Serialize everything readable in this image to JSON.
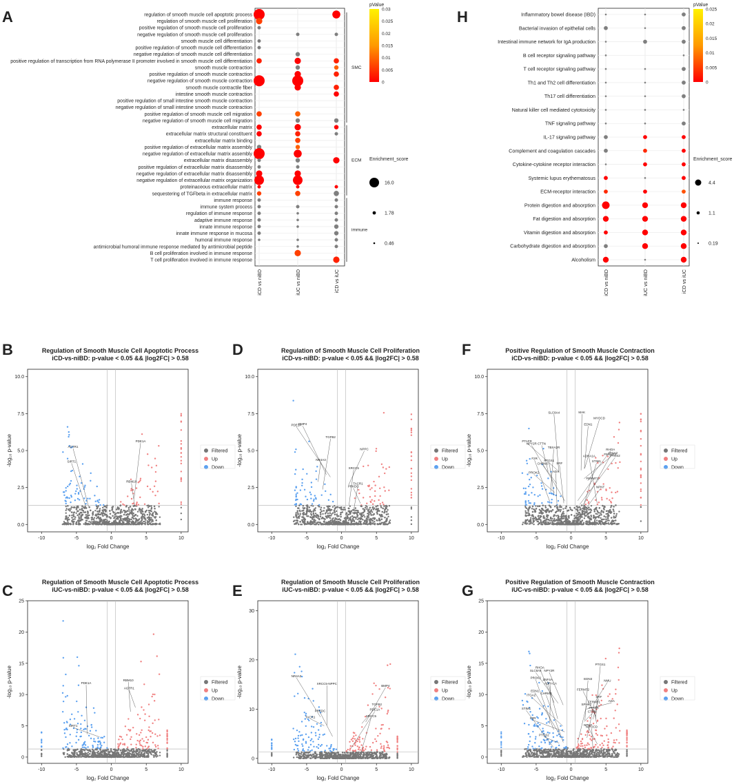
{
  "colors": {
    "up": "#f08080",
    "down": "#5aa0f0",
    "filtered": "#777777",
    "sig_high": "#ff0000",
    "sig_low": "#ffe000"
  },
  "panel_letters": [
    "A",
    "H",
    "B",
    "D",
    "F",
    "C",
    "E",
    "G"
  ],
  "panelA": {
    "terms": [
      "regulation of smooth muscle cell apoptotic process",
      "regulation of smooth muscle cell proliferation",
      "positive regulation of smooth muscle cell proliferation",
      "negative regulation of smooth muscle cell proliferation",
      "smooth muscle cell differentiation",
      "positive regulation of smooth muscle cell differentiation",
      "negative regulation of smooth muscle cell differentiation",
      "positive regulation of transcription from RNA polymerase II promoter involved in smooth muscle cell differentiation",
      "smooth muscle contraction",
      "positive regulation of smooth muscle contraction",
      "negative regulation of smooth muscle contraction",
      "smooth muscle contractile fiber",
      "intestine smooth muscle contraction",
      "positive regulation of small intestine smooth muscle contraction",
      "negative regulation of small intestine smooth muscle contraction",
      "positive regulation of smooth muscle cell migration",
      "negative regulation of smooth muscle cell migration",
      "extracellular matrix",
      "extracellular matrix structural constituent",
      "extracellular matrix binding",
      "positive regulation of extracellular matrix assembly",
      "negative regulation of extracellular matrix assembly",
      "extracellular matrix disassembly",
      "positive regulation of extracellular matrix disassembly",
      "negative regulation of extracellular matrix disassembly",
      "negative regulation of extracellular matrix organization",
      "proteinaceous extracellular matrix",
      "sequestering of TGFbeta in extracellular matrix",
      "immune response",
      "immune system process",
      "regulation of immune response",
      "adaptive immune response",
      "innate immune response",
      "innate immune response in mucosa",
      "humoral immune response",
      "antimicrobial humoral immune response mediated by antimicrobial peptide",
      "B cell proliferation involved in immune response",
      "T cell proliferation involved in immune response"
    ],
    "columns": [
      "iCD vs niBD",
      "iUC vs niBD",
      "iCD vs iUC"
    ],
    "groups": [
      "SMC",
      "ECM",
      "immune"
    ],
    "legend_title": "pValue",
    "legend_ticks": [
      "0.03",
      "0.025",
      "0.02",
      "0.015",
      "0.01",
      "0.005",
      "0"
    ],
    "size_title": "Enrichment_score",
    "size_ticks": [
      "16.0",
      "1.78",
      "0.46"
    ]
  },
  "panelH": {
    "terms": [
      "Inflammatory bowel disease (IBD)",
      "Bacterial invasion of epithelial cells",
      "Intestinal immune network for IgA production",
      "B cell receptor signaling pathway",
      "T cell receptor signaling pathway",
      "Th1 and Th2 cell differentiation",
      "Th17 cell differentiation",
      "Natural killer cell mediated cytotoxicity",
      "TNF signaling pathway",
      "IL-17 signaling pathway",
      "Complement and coagulation cascades",
      "Cytokine-cytokine receptor interaction",
      "Systemic lupus erythematosus",
      "ECM-receptor interaction",
      "Protein digestion and absorption",
      "Fat digestion and absorption",
      "Vitamin digestion and absorption",
      "Carbohydrate digestion and absorption",
      "Alcoholism"
    ],
    "columns": [
      "iCD vs niBD",
      "iUC vs niBD",
      "iCD vs iUC"
    ],
    "legend_title": "pValue",
    "legend_ticks": [
      "0.025",
      "0.02",
      "0.015",
      "0.01",
      "0.005",
      "0"
    ],
    "size_title": "Enrichment_score",
    "size_ticks": [
      "4.4",
      "1.1",
      "0.19"
    ]
  },
  "chart_data": [
    {
      "type": "scatter",
      "panel": "A",
      "description": "dot plot",
      "x": [
        "iCD vs niBD",
        "iUC vs niBD",
        "iCD vs iUC"
      ],
      "points": [
        [
          0,
          0,
          16,
          0.0
        ],
        [
          2,
          0,
          6,
          0.0
        ],
        [
          0,
          1,
          4,
          0.01
        ],
        [
          0,
          2,
          1,
          0.02
        ],
        [
          1,
          3,
          1,
          0.02
        ],
        [
          2,
          3,
          1,
          0.02
        ],
        [
          0,
          4,
          1,
          0.02
        ],
        [
          0,
          5,
          1,
          0.03
        ],
        [
          1,
          6,
          2,
          0.03
        ],
        [
          0,
          7,
          3,
          0.005
        ],
        [
          1,
          7,
          5,
          0.0
        ],
        [
          2,
          7,
          3,
          0.005
        ],
        [
          1,
          8,
          2,
          0.02
        ],
        [
          2,
          8,
          2,
          0.015
        ],
        [
          1,
          9,
          5,
          0.0
        ],
        [
          2,
          9,
          3,
          0.005
        ],
        [
          0,
          10,
          16,
          0.0
        ],
        [
          1,
          10,
          16,
          0.0
        ],
        [
          1,
          11,
          4,
          0.0
        ],
        [
          2,
          11,
          3,
          0.005
        ],
        [
          2,
          12,
          3,
          0.0
        ],
        [
          0,
          15,
          3,
          0.01
        ],
        [
          1,
          15,
          3,
          0.015
        ],
        [
          1,
          16,
          2,
          0.025
        ],
        [
          2,
          16,
          2,
          0.02
        ],
        [
          0,
          17,
          3,
          0.0
        ],
        [
          1,
          17,
          4,
          0.0
        ],
        [
          2,
          17,
          2,
          0.0
        ],
        [
          0,
          18,
          3,
          0.0
        ],
        [
          1,
          18,
          3,
          0.005
        ],
        [
          2,
          18,
          1,
          0.02
        ],
        [
          1,
          19,
          3,
          0.01
        ],
        [
          0,
          20,
          2,
          0.02
        ],
        [
          1,
          20,
          2,
          0.015
        ],
        [
          0,
          21,
          16,
          0.0
        ],
        [
          1,
          21,
          6,
          0.0
        ],
        [
          0,
          22,
          1,
          0.02
        ],
        [
          1,
          22,
          2,
          0.02
        ],
        [
          2,
          22,
          4,
          0.0
        ],
        [
          0,
          23,
          1,
          0.02
        ],
        [
          1,
          23,
          1,
          0.02
        ],
        [
          0,
          24,
          4,
          0.0
        ],
        [
          1,
          24,
          5,
          0.0
        ],
        [
          0,
          25,
          10,
          0.0
        ],
        [
          1,
          25,
          12,
          0.0
        ],
        [
          0,
          26,
          1,
          0.0
        ],
        [
          1,
          26,
          1,
          0.0
        ],
        [
          2,
          26,
          1,
          0.0
        ],
        [
          0,
          27,
          2,
          0.01
        ],
        [
          1,
          27,
          3,
          0.01
        ],
        [
          2,
          27,
          3,
          0.03
        ],
        [
          0,
          28,
          1,
          0.02
        ],
        [
          2,
          28,
          1,
          0.02
        ],
        [
          0,
          29,
          1,
          0.02
        ],
        [
          1,
          29,
          1,
          0.02
        ],
        [
          2,
          29,
          1,
          0.02
        ],
        [
          0,
          30,
          1,
          0.02
        ],
        [
          1,
          30,
          0.5,
          0.02
        ],
        [
          2,
          30,
          1,
          0.02
        ],
        [
          0,
          31,
          1,
          0.02
        ],
        [
          1,
          31,
          0.5,
          0.02
        ],
        [
          2,
          31,
          1,
          0.02
        ],
        [
          0,
          32,
          1,
          0.02
        ],
        [
          1,
          32,
          0.5,
          0.02
        ],
        [
          2,
          32,
          2,
          0.02
        ],
        [
          0,
          33,
          1,
          0.02
        ],
        [
          2,
          33,
          2,
          0.02
        ],
        [
          0,
          34,
          0.5,
          0.02
        ],
        [
          1,
          34,
          0.5,
          0.02
        ],
        [
          2,
          34,
          1,
          0.02
        ],
        [
          1,
          35,
          0.5,
          0.02
        ],
        [
          2,
          35,
          1,
          0.02
        ],
        [
          1,
          36,
          4,
          0.01
        ],
        [
          2,
          37,
          4,
          0.005
        ]
      ]
    },
    {
      "type": "scatter",
      "panel": "H",
      "description": "KEGG dot plot",
      "x": [
        "iCD vs niBD",
        "iUC vs niBD",
        "iCD vs iUC"
      ],
      "points": [
        [
          0,
          0,
          0.2,
          0.02
        ],
        [
          1,
          0,
          0.2,
          0.02
        ],
        [
          2,
          0,
          1.1,
          0.02
        ],
        [
          0,
          1,
          1.1,
          0.02
        ],
        [
          1,
          1,
          0.19,
          0.02
        ],
        [
          2,
          1,
          1.1,
          0.02
        ],
        [
          0,
          2,
          0.19,
          0.02
        ],
        [
          1,
          2,
          1.1,
          0.02
        ],
        [
          2,
          2,
          1.1,
          0.025
        ],
        [
          0,
          3,
          0.19,
          0.02
        ],
        [
          2,
          3,
          0.19,
          0.02
        ],
        [
          0,
          4,
          0.19,
          0.02
        ],
        [
          1,
          4,
          0.19,
          0.02
        ],
        [
          2,
          4,
          1.1,
          0.02
        ],
        [
          0,
          5,
          0.19,
          0.02
        ],
        [
          1,
          5,
          0.19,
          0.02
        ],
        [
          2,
          5,
          1.1,
          0.02
        ],
        [
          0,
          6,
          0.19,
          0.02
        ],
        [
          1,
          6,
          0.19,
          0.02
        ],
        [
          2,
          6,
          1.1,
          0.02
        ],
        [
          0,
          7,
          0.19,
          0.02
        ],
        [
          1,
          7,
          0.19,
          0.02
        ],
        [
          2,
          7,
          0.19,
          0.02
        ],
        [
          0,
          8,
          0.19,
          0.02
        ],
        [
          1,
          8,
          0.19,
          0.02
        ],
        [
          2,
          8,
          1.1,
          0.02
        ],
        [
          0,
          9,
          1.1,
          0.02
        ],
        [
          1,
          9,
          1.1,
          0.0
        ],
        [
          2,
          9,
          1.1,
          0.0
        ],
        [
          0,
          10,
          1.1,
          0.02
        ],
        [
          1,
          10,
          1.1,
          0.005
        ],
        [
          2,
          10,
          1.1,
          0.0
        ],
        [
          0,
          11,
          0.19,
          0.02
        ],
        [
          1,
          11,
          1.1,
          0.0
        ],
        [
          2,
          11,
          1.1,
          0.0
        ],
        [
          0,
          12,
          1.1,
          0.0
        ],
        [
          1,
          12,
          0.19,
          0.02
        ],
        [
          2,
          12,
          1.1,
          0.0
        ],
        [
          0,
          13,
          1.1,
          0.005
        ],
        [
          1,
          13,
          1.1,
          0.0
        ],
        [
          2,
          13,
          1.1,
          0.01
        ],
        [
          0,
          14,
          4.4,
          0.0
        ],
        [
          1,
          14,
          2.5,
          0.0
        ],
        [
          2,
          14,
          2.5,
          0.0
        ],
        [
          0,
          15,
          2.5,
          0.0
        ],
        [
          1,
          15,
          2.5,
          0.0
        ],
        [
          2,
          15,
          2.5,
          0.0
        ],
        [
          0,
          16,
          1.1,
          0.0
        ],
        [
          1,
          16,
          2.5,
          0.0
        ],
        [
          2,
          16,
          2.5,
          0.0
        ],
        [
          0,
          17,
          1.1,
          0.02
        ],
        [
          1,
          17,
          2.5,
          0.0
        ],
        [
          2,
          17,
          2.5,
          0.0
        ],
        [
          0,
          18,
          2.5,
          0.0
        ],
        [
          1,
          18,
          0.19,
          0.02
        ],
        [
          2,
          18,
          2.5,
          0.0
        ]
      ]
    },
    {
      "type": "scatter",
      "panel": "B",
      "title": "Regulation of Smooth Muscle Cell Apoptotic Process",
      "subtitle": "iCD-vs-niBD: p-value < 0.05 && |log2FC| > 0.58",
      "xlabel": "log₂ Fold Change",
      "ylabel": "-log₁₀ p-value",
      "xlim": [
        -12,
        11
      ],
      "ylim": [
        -0.5,
        10.5
      ],
      "xticks": [
        -10,
        -5,
        0,
        5,
        10
      ],
      "yticks": [
        0.0,
        2.5,
        5.0,
        7.5,
        10.0
      ],
      "labels": [
        "RBM10",
        "SIRT1",
        "PDE1A",
        "AGTR1"
      ]
    },
    {
      "type": "scatter",
      "panel": "D",
      "title": "Regulation of Smooth Muscle Cell Proliferation",
      "subtitle": "iCD-vs-niBD: p-value < 0.05 && |log2FC| > 0.58",
      "xlabel": "log₂ Fold Change",
      "ylabel": "-log₁₀ p-value",
      "xlim": [
        -12,
        11
      ],
      "ylim": [
        -0.5,
        10.5
      ],
      "xticks": [
        -10,
        -5,
        0,
        5,
        10
      ],
      "yticks": [
        0.0,
        2.5,
        5.0,
        7.5,
        10.0
      ],
      "labels": [
        "XRCC5",
        "TGFB2",
        "PRKDC",
        "PDE1A",
        "TACR1",
        "BMP4",
        "NPPC",
        "NR4A3"
      ]
    },
    {
      "type": "scatter",
      "panel": "F",
      "title": "Positive Regulation of Smooth Muscle Contraction",
      "subtitle": "iCD-vs-niBD: p-value < 0.05 && |log2FC| > 0.58",
      "xlabel": "log₂ Fold Change",
      "ylabel": "-log₁₀ p-value",
      "xlim": [
        -12,
        11
      ],
      "ylim": [
        -0.5,
        10.5
      ],
      "xticks": [
        -10,
        -5,
        0,
        5,
        10
      ],
      "yticks": [
        0.0,
        2.5,
        5.0,
        7.5,
        10.0
      ],
      "labels": [
        "FERMT2",
        "SLC8A4",
        "NPNT",
        "TBXA2R",
        "ADRA1A",
        "PTAFR",
        "FERMT1",
        "CTTN",
        "ITGA2",
        "NPY2R",
        "RHOA",
        "SRF",
        "STIM1",
        "F2R",
        "MAK",
        "PROK2",
        "PTGS2",
        "CHRM3",
        "MYOCD",
        "ADA",
        "EDN1",
        "PTGS1"
      ]
    },
    {
      "type": "scatter",
      "panel": "C",
      "title": "Regulation of Smooth Muscle Cell Apoptotic Process",
      "subtitle": "iUC-vs-niBD: p-value < 0.05 && |log2FC| > 0.58",
      "xlabel": "log₂ Fold Change",
      "ylabel": "-log₁₀ p-value",
      "xlim": [
        -12,
        11
      ],
      "ylim": [
        -1,
        25
      ],
      "xticks": [
        -10,
        -5,
        0,
        5,
        10
      ],
      "yticks": [
        0,
        5,
        10,
        15,
        20,
        25
      ],
      "labels": [
        "RBM10",
        "PDE1A",
        "AGTR1",
        "SIRT1"
      ]
    },
    {
      "type": "scatter",
      "panel": "E",
      "title": "Regulation of Smooth Muscle Cell Proliferation",
      "subtitle": "iUC-vs-niBD: p-value < 0.05 && |log2FC| > 0.58",
      "xlabel": "log₂ Fold Change",
      "ylabel": "-log₁₀ p-value",
      "xlim": [
        -12,
        11
      ],
      "ylim": [
        -1,
        32
      ],
      "xticks": [
        -10,
        -5,
        0,
        5,
        10
      ],
      "yticks": [
        0,
        10,
        20,
        30
      ],
      "labels": [
        "BMP4",
        "TACR1",
        "TGFB2",
        "NR4A3",
        "PDE1A",
        "PRKDC",
        "XRCC5",
        "XRCC5-NPPC"
      ]
    },
    {
      "type": "scatter",
      "panel": "G",
      "title": "Positive Regulation of Smooth Muscle Contraction",
      "subtitle": "iUC-vs-niBD: p-value < 0.05 && |log2FC| > 0.58",
      "xlabel": "log₂ Fold Change",
      "ylabel": "-log₁₀ p-value",
      "xlim": [
        -12,
        11
      ],
      "ylim": [
        -1,
        25
      ],
      "xticks": [
        -10,
        -5,
        0,
        5,
        10
      ],
      "yticks": [
        0,
        5,
        10,
        15,
        20,
        25
      ],
      "labels": [
        "SPHK1",
        "SLC8A4",
        "FERMT2",
        "F2R",
        "PTAFR",
        "CHRM3",
        "NPNT",
        "ADRA1A",
        "CTTN",
        "STIM1",
        "EDN3",
        "ZNF4A",
        "ADA",
        "PROK2",
        "MYOCD",
        "PTGS2",
        "PTGS1",
        "EDN1",
        "SRF",
        "NPY2R",
        "FERMT1",
        "RHOA",
        "NMU",
        "ITGA2"
      ]
    }
  ],
  "volcano_legend": {
    "title": "",
    "items": [
      "Filtered",
      "Up",
      "Down"
    ]
  }
}
